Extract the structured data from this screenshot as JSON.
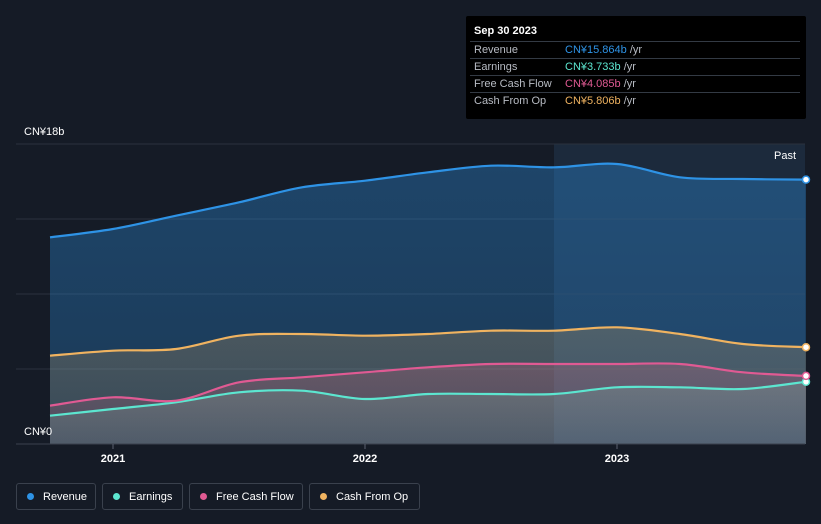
{
  "tooltip": {
    "date": "Sep 30 2023",
    "rows": [
      {
        "label": "Revenue",
        "value": "CN¥15.864b",
        "unit": " /yr",
        "color": "#2e93e6"
      },
      {
        "label": "Earnings",
        "value": "CN¥3.733b",
        "unit": " /yr",
        "color": "#5ce6d0"
      },
      {
        "label": "Free Cash Flow",
        "value": "CN¥4.085b",
        "unit": " /yr",
        "color": "#e05a93"
      },
      {
        "label": "Cash From Op",
        "value": "CN¥5.806b",
        "unit": " /yr",
        "color": "#f0b360"
      }
    ]
  },
  "past_label": "Past",
  "legend": [
    {
      "label": "Revenue",
      "color": "#2e93e6"
    },
    {
      "label": "Earnings",
      "color": "#5ce6d0"
    },
    {
      "label": "Free Cash Flow",
      "color": "#e05a93"
    },
    {
      "label": "Cash From Op",
      "color": "#f0b360"
    }
  ],
  "chart_data": {
    "type": "area",
    "currency": "CN¥",
    "ylim": [
      0,
      18
    ],
    "y_tick_labels": [
      "CN¥0",
      "CN¥18b"
    ],
    "x_ticks": [
      2021,
      2022,
      2023
    ],
    "x_tick_labels": [
      "2021",
      "2022",
      "2023"
    ],
    "grid": true,
    "past_region_start": 2022.75,
    "series": [
      {
        "name": "Revenue",
        "color": "#2e93e6",
        "x": [
          2020.75,
          2021.0,
          2021.25,
          2021.5,
          2021.75,
          2022.0,
          2022.25,
          2022.5,
          2022.75,
          2023.0,
          2023.25,
          2023.5,
          2023.75
        ],
        "y": [
          12.4,
          12.9,
          13.7,
          14.5,
          15.4,
          15.8,
          16.3,
          16.7,
          16.6,
          16.8,
          16.0,
          15.9,
          15.864
        ]
      },
      {
        "name": "Earnings",
        "color": "#5ce6d0",
        "x": [
          2020.75,
          2021.0,
          2021.25,
          2021.5,
          2021.75,
          2022.0,
          2022.25,
          2022.5,
          2022.75,
          2023.0,
          2023.25,
          2023.5,
          2023.75
        ],
        "y": [
          1.7,
          2.1,
          2.5,
          3.1,
          3.2,
          2.7,
          3.0,
          3.0,
          3.0,
          3.4,
          3.4,
          3.3,
          3.733
        ]
      },
      {
        "name": "Free Cash Flow",
        "color": "#e05a93",
        "x": [
          2020.75,
          2021.0,
          2021.25,
          2021.5,
          2021.75,
          2022.0,
          2022.25,
          2022.5,
          2022.75,
          2023.0,
          2023.25,
          2023.5,
          2023.75
        ],
        "y": [
          2.3,
          2.8,
          2.6,
          3.7,
          4.0,
          4.3,
          4.6,
          4.8,
          4.8,
          4.8,
          4.8,
          4.3,
          4.085
        ]
      },
      {
        "name": "Cash From Op",
        "color": "#f0b360",
        "x": [
          2020.75,
          2021.0,
          2021.25,
          2021.5,
          2021.75,
          2022.0,
          2022.25,
          2022.5,
          2022.75,
          2023.0,
          2023.25,
          2023.5,
          2023.75
        ],
        "y": [
          5.3,
          5.6,
          5.7,
          6.5,
          6.6,
          6.5,
          6.6,
          6.8,
          6.8,
          7.0,
          6.6,
          6.0,
          5.806
        ]
      }
    ]
  }
}
